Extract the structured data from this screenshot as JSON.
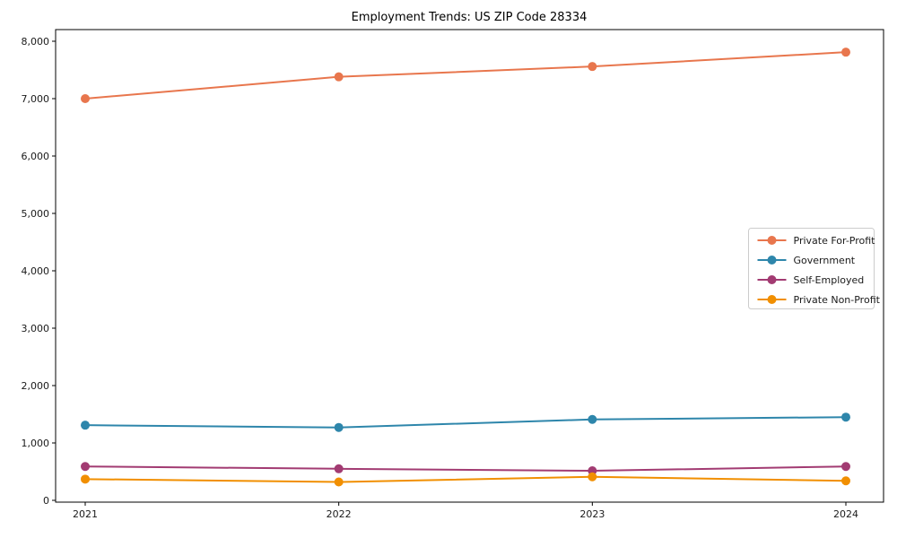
{
  "chart_data": {
    "type": "line",
    "title": "Employment Trends: US ZIP Code 28334",
    "xlabel": "",
    "ylabel": "",
    "categories": [
      "2021",
      "2022",
      "2023",
      "2024"
    ],
    "series": [
      {
        "name": "Private For-Profit",
        "color": "#E8764D",
        "values": [
          7000,
          7380,
          7560,
          7810
        ]
      },
      {
        "name": "Government",
        "color": "#2E86AB",
        "values": [
          1310,
          1270,
          1410,
          1450
        ]
      },
      {
        "name": "Self-Employed",
        "color": "#A23B72",
        "values": [
          590,
          550,
          515,
          590
        ]
      },
      {
        "name": "Private Non-Profit",
        "color": "#F18F01",
        "values": [
          370,
          320,
          410,
          340
        ]
      }
    ],
    "ylim": [
      0,
      8200
    ],
    "yticks": [
      0,
      1000,
      2000,
      3000,
      4000,
      5000,
      6000,
      7000,
      8000
    ],
    "ytick_labels": [
      "0",
      "1,000",
      "2,000",
      "3,000",
      "4,000",
      "5,000",
      "6,000",
      "7,000",
      "8,000"
    ],
    "grid": false,
    "legend_position": "center right",
    "marker": "circle",
    "line_width": 2,
    "marker_radius": 5,
    "axis_color": "#000000",
    "legend_border_color": "#cccccc",
    "background_color": "#ffffff"
  }
}
